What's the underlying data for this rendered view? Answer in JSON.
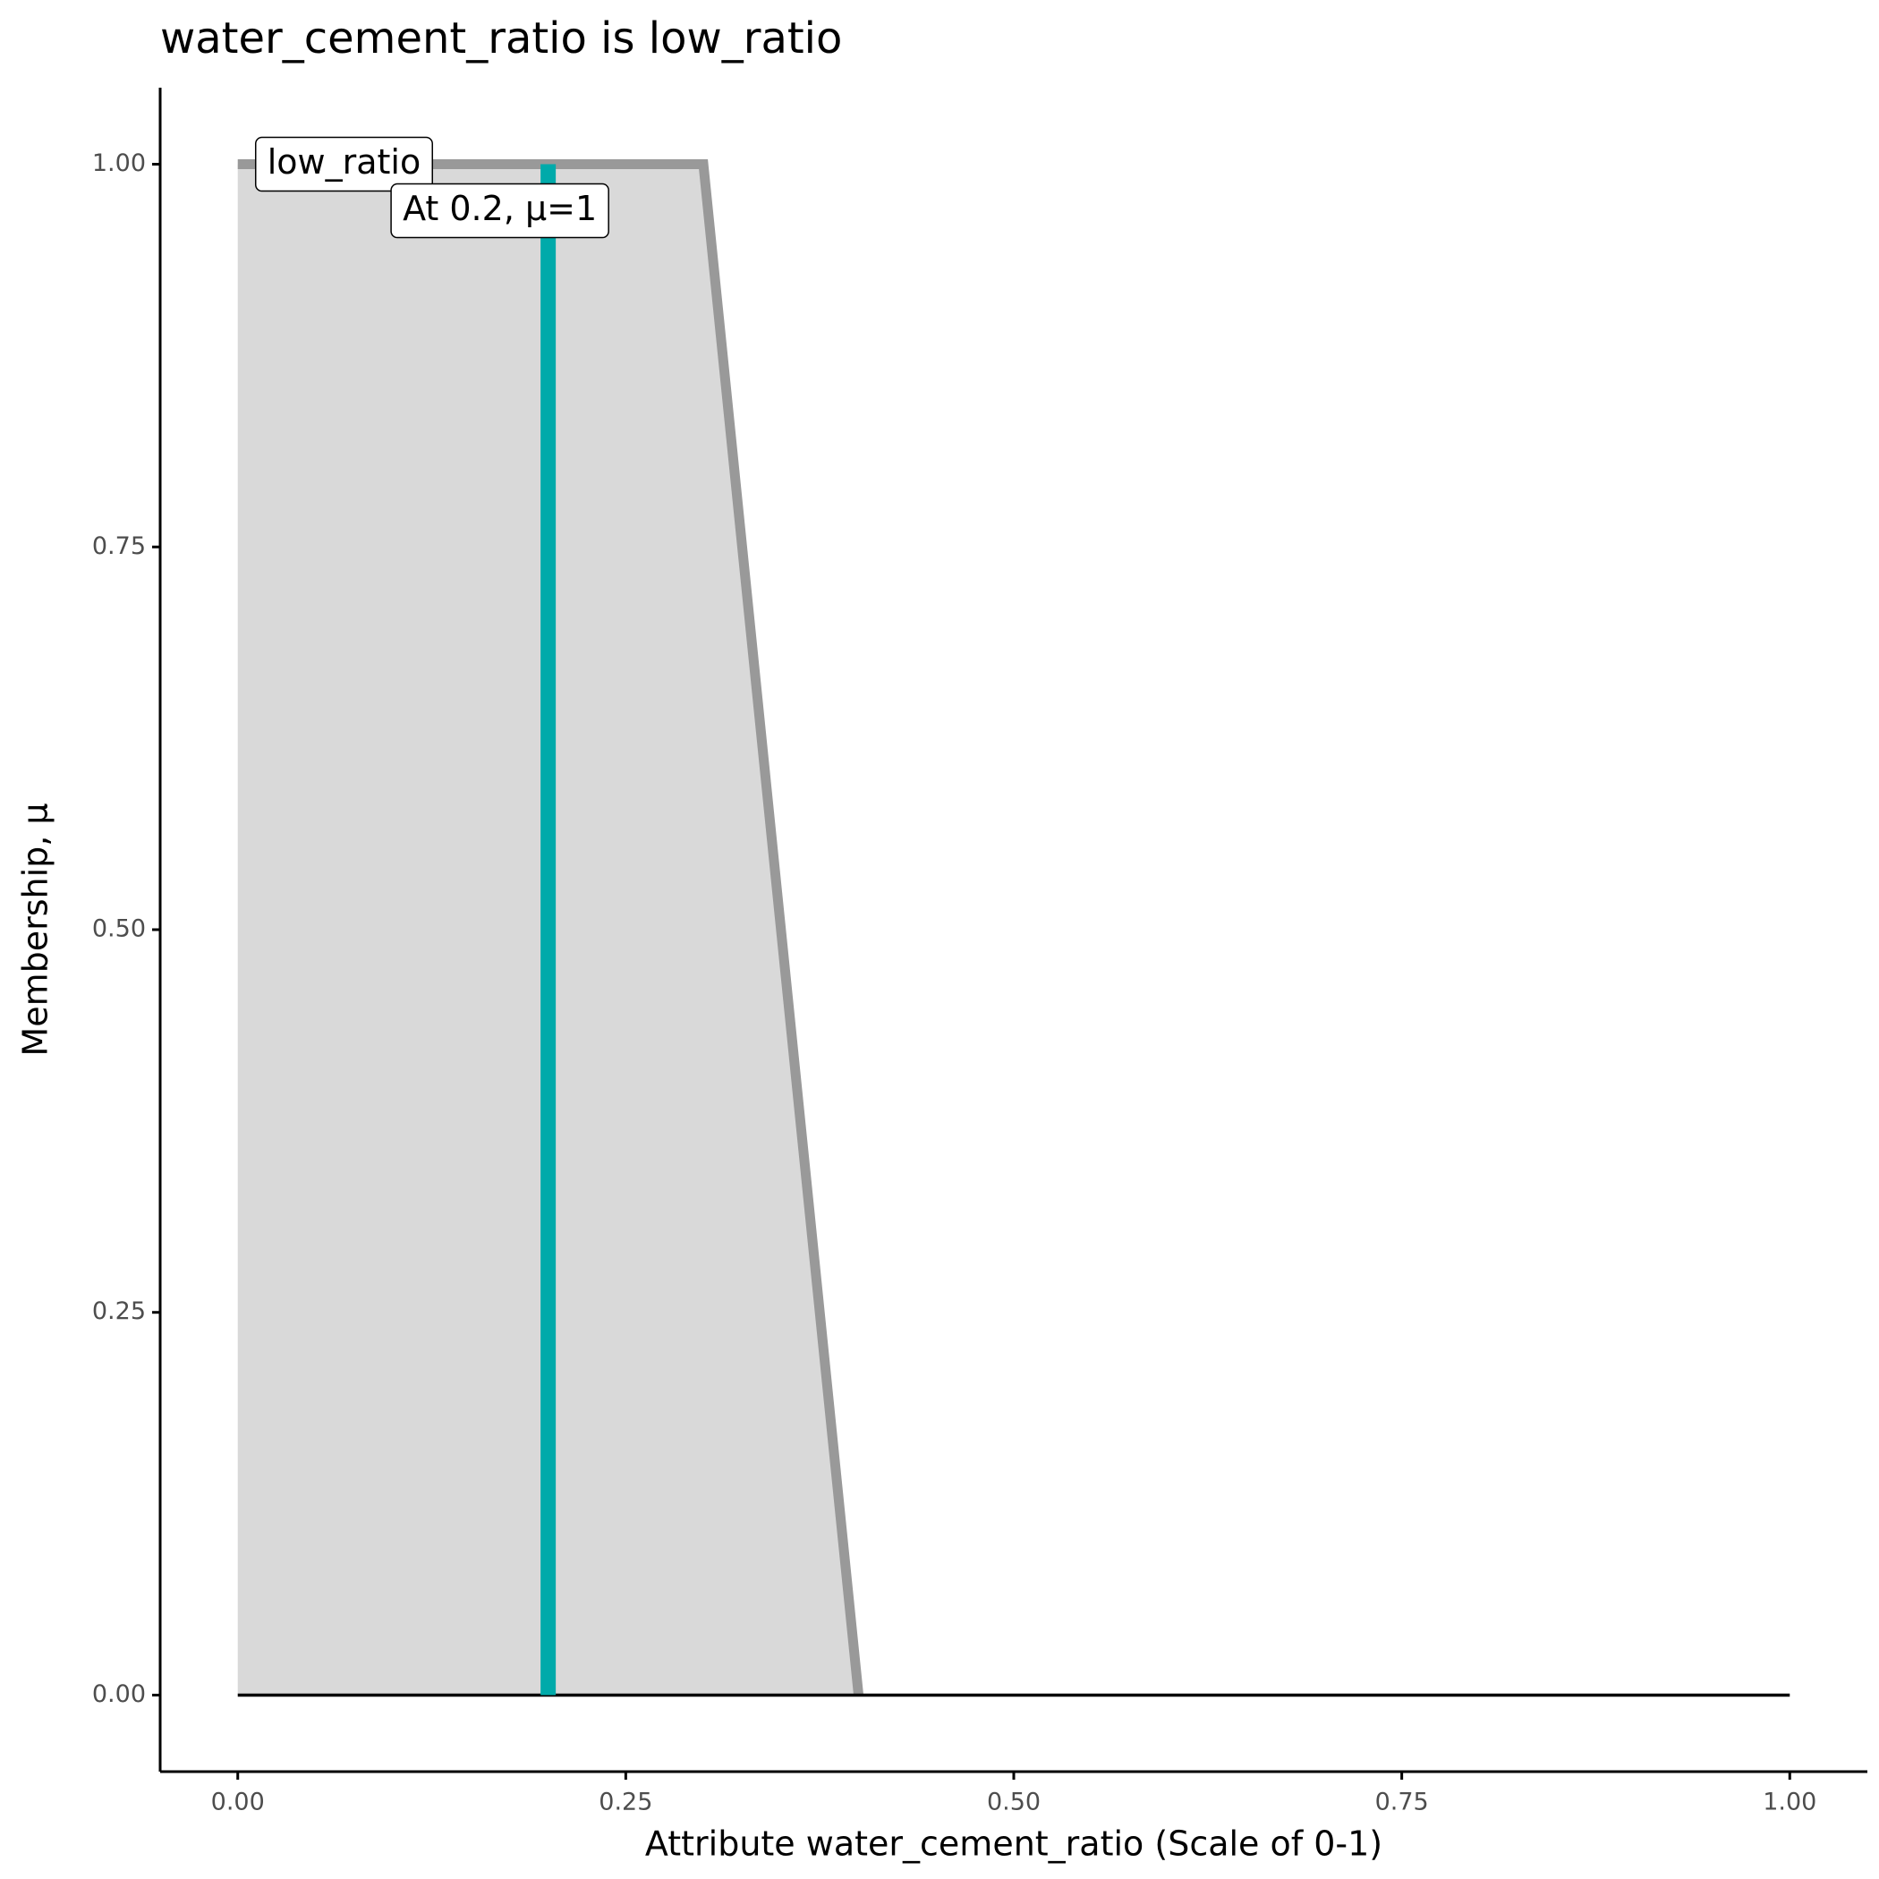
{
  "chart_data": {
    "type": "line",
    "title": "water_cement_ratio is low_ratio",
    "x_label": "Attribute water_cement_ratio (Scale of 0-1)",
    "y_label": "Membership, μ",
    "xlim": [
      -0.05,
      1.05
    ],
    "ylim": [
      -0.05,
      1.05
    ],
    "xticks": [
      {
        "value": 0,
        "label": "0.00"
      },
      {
        "value": 0.25,
        "label": "0.25"
      },
      {
        "value": 0.5,
        "label": "0.50"
      },
      {
        "value": 0.75,
        "label": "0.75"
      },
      {
        "value": 1,
        "label": "1.00"
      }
    ],
    "yticks": [
      {
        "value": 0,
        "label": "0.00"
      },
      {
        "value": 0.25,
        "label": "0.25"
      },
      {
        "value": 0.5,
        "label": "0.50"
      },
      {
        "value": 0.75,
        "label": "0.75"
      },
      {
        "value": 1,
        "label": "1.00"
      }
    ],
    "series": [
      {
        "name": "low_ratio",
        "color": "#999999",
        "fill": "#d9d9d9",
        "x": [
          0,
          0.3,
          0.4
        ],
        "values": [
          1,
          1,
          0
        ]
      },
      {
        "color": "#000000",
        "x": [
          0,
          1
        ],
        "values": [
          0,
          0
        ]
      }
    ],
    "markers": [
      {
        "x": 0.2,
        "value": 1,
        "color": "#00AAAA",
        "label": "At 0.2, μ=1"
      }
    ]
  }
}
